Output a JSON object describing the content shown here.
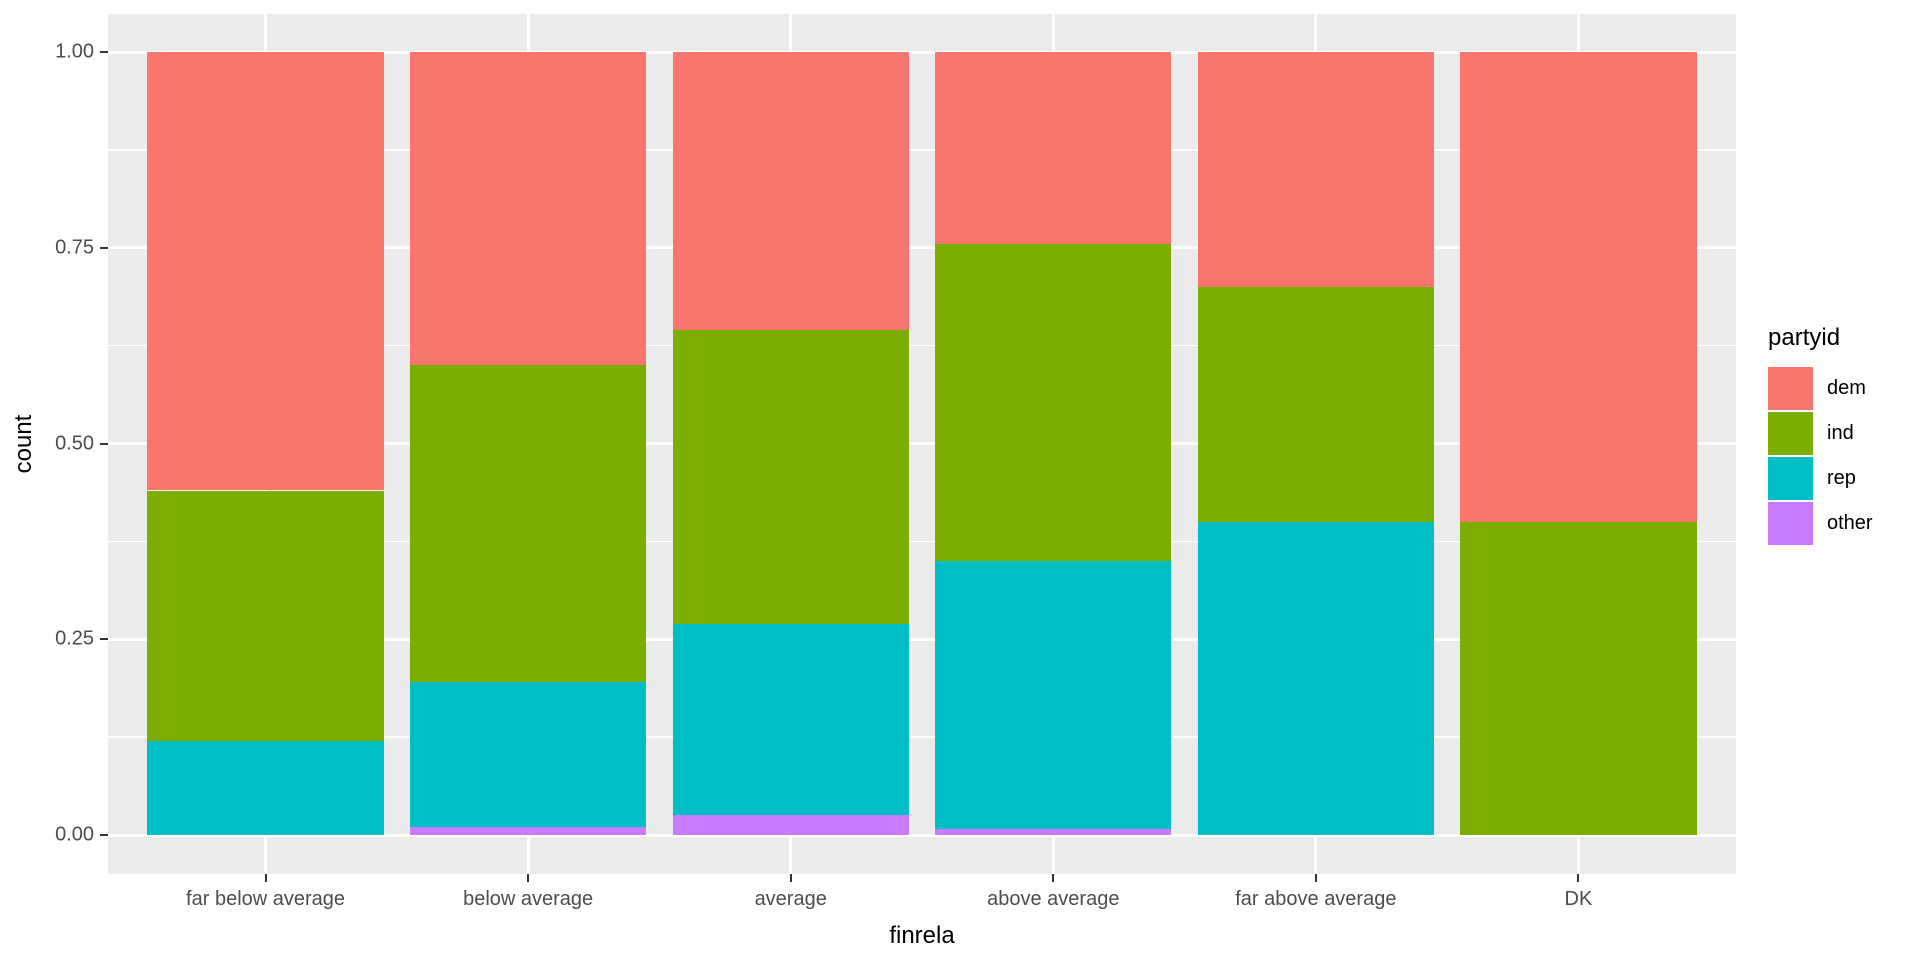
{
  "chart_data": {
    "type": "bar",
    "stacked": true,
    "position": "fill",
    "title": "",
    "xlabel": "finrela",
    "ylabel": "count",
    "categories": [
      "far below average",
      "below average",
      "average",
      "above average",
      "far above average",
      "DK"
    ],
    "series": [
      {
        "name": "dem",
        "color": "#F8766D",
        "values": [
          0.56,
          0.4,
          0.355,
          0.245,
          0.3,
          0.6
        ]
      },
      {
        "name": "ind",
        "color": "#7CAE00",
        "values": [
          0.32,
          0.405,
          0.375,
          0.405,
          0.3,
          0.4
        ]
      },
      {
        "name": "rep",
        "color": "#00BFC4",
        "values": [
          0.12,
          0.185,
          0.245,
          0.342,
          0.4,
          0.0
        ]
      },
      {
        "name": "other",
        "color": "#C77CFF",
        "values": [
          0.0,
          0.01,
          0.025,
          0.008,
          0.0,
          0.0
        ]
      }
    ],
    "stack_order_bottom_to_top": [
      "other",
      "rep",
      "ind",
      "dem"
    ],
    "legend_title": "partyid",
    "legend_position": "right",
    "ylim": [
      0,
      1
    ],
    "yticks": [
      {
        "value": 0.0,
        "label": "0.00"
      },
      {
        "value": 0.25,
        "label": "0.25"
      },
      {
        "value": 0.5,
        "label": "0.50"
      },
      {
        "value": 0.75,
        "label": "0.75"
      },
      {
        "value": 1.0,
        "label": "1.00"
      }
    ],
    "yticks_minor": [
      0.125,
      0.375,
      0.625,
      0.875
    ],
    "grid": true,
    "colors": {
      "panel_background": "#EBEBEB",
      "gridline": "#FFFFFF",
      "tick_mark": "#333333",
      "tick_text": "#4D4D4D",
      "axis_title_text": "#000000",
      "page_background": "#FFFFFF"
    }
  }
}
